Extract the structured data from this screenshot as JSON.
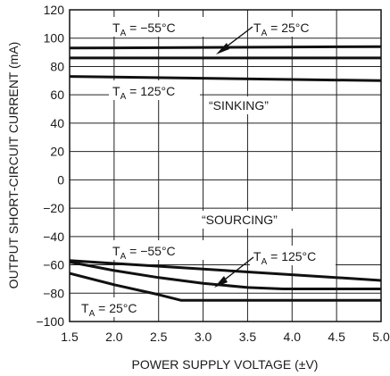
{
  "chart_data": {
    "type": "line",
    "title": "",
    "xlabel": "POWER SUPPLY VOLTAGE (±V)",
    "ylabel": "OUTPUT SHORT-CIRCUIT CURRENT (mA)",
    "xlim": [
      1.5,
      5.0
    ],
    "ylim": [
      -100,
      120
    ],
    "xticks": [
      "1.5",
      "2.0",
      "2.5",
      "3.0",
      "3.5",
      "4.0",
      "4.5",
      "5.0"
    ],
    "yticks": [
      "120",
      "100",
      "80",
      "60",
      "40",
      "20",
      "0",
      "−20",
      "−40",
      "−60",
      "−80",
      "−100"
    ],
    "grid": true,
    "series": [
      {
        "name": "TA = −55°C",
        "group": "SINKING",
        "x": [
          1.5,
          5.0
        ],
        "y": [
          93,
          94
        ]
      },
      {
        "name": "TA = 25°C",
        "group": "SINKING",
        "x": [
          1.5,
          5.0
        ],
        "y": [
          86,
          86
        ]
      },
      {
        "name": "TA = 125°C",
        "group": "SINKING",
        "x": [
          1.5,
          5.0
        ],
        "y": [
          73,
          70
        ]
      },
      {
        "name": "TA = −55°C",
        "group": "SOURCING",
        "x": [
          1.5,
          3.0,
          4.0,
          5.0
        ],
        "y": [
          -57,
          -63,
          -67,
          -71
        ]
      },
      {
        "name": "TA = 125°C",
        "group": "SOURCING",
        "x": [
          1.5,
          2.0,
          2.5,
          3.0,
          3.5,
          3.9,
          5.0
        ],
        "y": [
          -58,
          -64,
          -69,
          -73,
          -76,
          -77,
          -77
        ]
      },
      {
        "name": "TA = 25°C",
        "group": "SOURCING",
        "x": [
          1.5,
          2.0,
          2.5,
          2.75,
          5.0
        ],
        "y": [
          -66,
          -74,
          -81,
          -85,
          -85
        ]
      }
    ],
    "annotations": {
      "sinking": "“SINKING”",
      "sourcing": "“SOURCING”",
      "ta_prefix": "T",
      "ta_sub": "A",
      "sink_m55": " = −55°C",
      "sink_25": " = 25°C",
      "sink_125": " = 125°C",
      "src_m55": " = −55°C",
      "src_125": " = 125°C",
      "src_25": " = 25°C"
    }
  }
}
